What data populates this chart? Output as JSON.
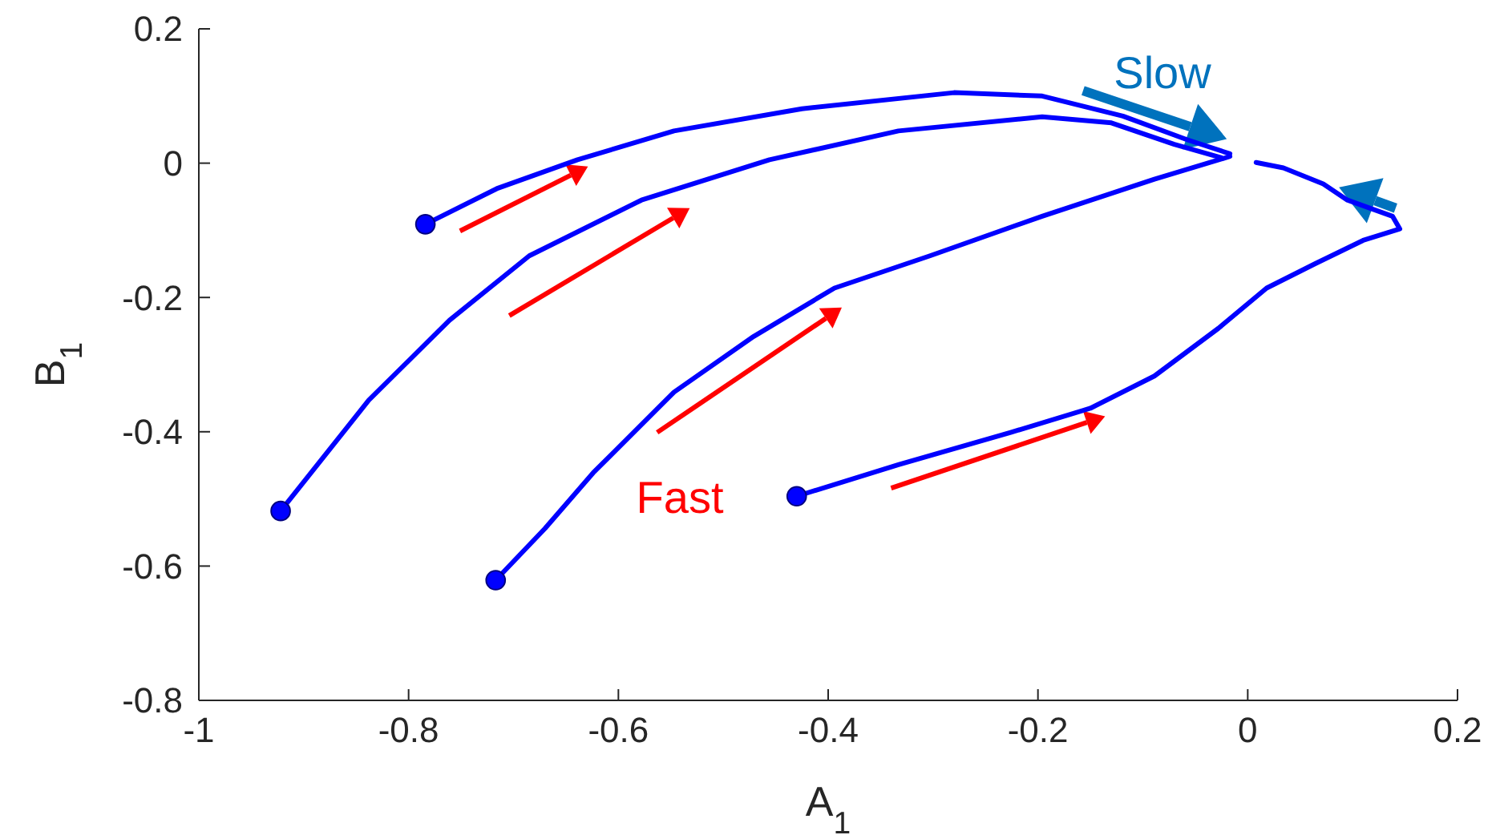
{
  "chart_data": {
    "type": "line",
    "xlabel": "A$_{1}$",
    "ylabel": "B$_{1}$",
    "xlim": [
      -1,
      0.2
    ],
    "ylim": [
      -0.8,
      0.2
    ],
    "xticks": [
      -1,
      -0.8,
      -0.6,
      -0.4,
      -0.2,
      0,
      0.2
    ],
    "yticks": [
      -0.8,
      -0.6,
      -0.4,
      -0.2,
      0,
      0.2
    ],
    "grid": false,
    "line_style": "solid",
    "series": [
      {
        "color": "#0000ff",
        "marker": "none",
        "x": [
          -0.784,
          -0.716,
          -0.639,
          -0.547,
          -0.425,
          -0.28,
          -0.196,
          -0.119,
          -0.058,
          -0.017
        ],
        "values": [
          -0.091,
          -0.038,
          0.005,
          0.048,
          0.081,
          0.105,
          0.1,
          0.07,
          0.035,
          0.014
        ]
      },
      {
        "color": "#0000ff",
        "marker": "none",
        "x": [
          -0.922,
          -0.838,
          -0.761,
          -0.685,
          -0.578,
          -0.456,
          -0.333,
          -0.196,
          -0.13,
          -0.07,
          -0.025
        ],
        "values": [
          -0.518,
          -0.353,
          -0.234,
          -0.138,
          -0.055,
          0.005,
          0.048,
          0.069,
          0.06,
          0.028,
          0.008
        ]
      },
      {
        "color": "#0000ff",
        "marker": "none",
        "x": [
          -0.717,
          -0.67,
          -0.624,
          -0.547,
          -0.471,
          -0.394,
          -0.303,
          -0.196,
          -0.089,
          -0.017
        ],
        "values": [
          -0.621,
          -0.544,
          -0.461,
          -0.341,
          -0.258,
          -0.186,
          -0.138,
          -0.079,
          -0.024,
          0.01
        ]
      },
      {
        "color": "#0000ff",
        "marker": "none",
        "x": [
          -0.43,
          -0.333,
          -0.226,
          -0.15,
          -0.089,
          -0.028,
          0.018,
          0.064,
          0.11,
          0.145,
          0.138,
          0.095,
          0.072,
          0.034,
          0.008
        ],
        "values": [
          -0.496,
          -0.449,
          -0.401,
          -0.365,
          -0.317,
          -0.246,
          -0.186,
          -0.15,
          -0.115,
          -0.098,
          -0.079,
          -0.055,
          -0.031,
          -0.007,
          0.001
        ]
      },
      {
        "type": "scatter",
        "color": "#0000ff",
        "marker": "circle",
        "x": [
          -0.784,
          -0.922,
          -0.717,
          -0.43
        ],
        "values": [
          -0.091,
          -0.518,
          -0.621,
          -0.496
        ]
      }
    ],
    "annotations": [
      "Fast",
      "Slow"
    ]
  }
}
